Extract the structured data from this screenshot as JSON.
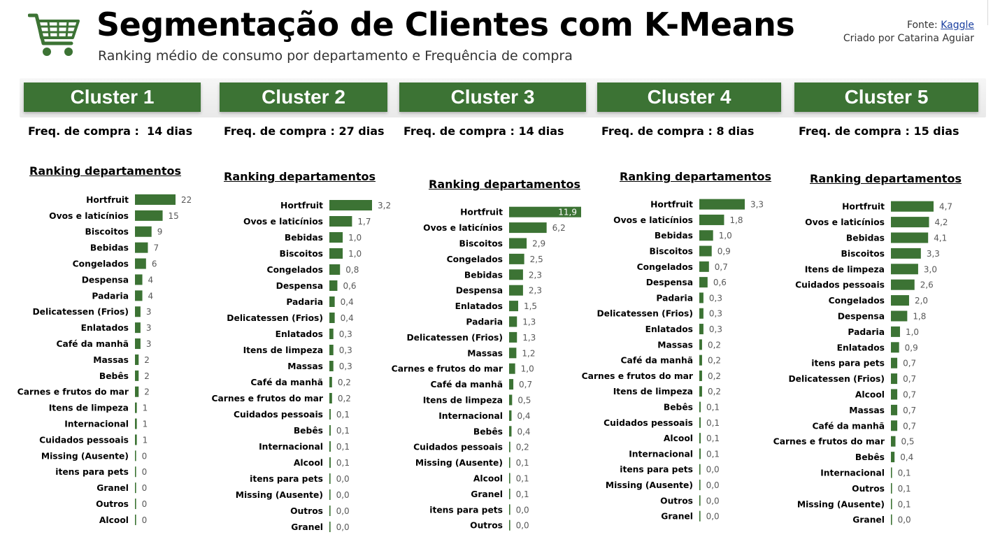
{
  "header": {
    "title": "Segmentação de Clientes com K-Means",
    "subtitle": "Ranking médio de consumo por departamento e Frequência de compra",
    "source_label": "Fonte:",
    "source_link": "Kaggle",
    "credit": "Criado por Catarina Aguiar",
    "icon": "shopping-cart-icon"
  },
  "colors": {
    "bar": "#3c7334",
    "header_bg": "#3c7334",
    "value_text": "#595959"
  },
  "clusters": [
    {
      "name": "Cluster 1",
      "freq": "Freq. de compra :  14 dias",
      "ranking_title": "Ranking departamentos"
    },
    {
      "name": "Cluster 2",
      "freq": "Freq. de compra : 27 dias",
      "ranking_title": "Ranking departamentos"
    },
    {
      "name": "Cluster 3",
      "freq": "Freq. de compra : 14 dias",
      "ranking_title": "Ranking departamentos"
    },
    {
      "name": "Cluster 4",
      "freq": "Freq. de compra : 8 dias",
      "ranking_title": "Ranking departamentos"
    },
    {
      "name": "Cluster 5",
      "freq": "Freq. de compra : 15 dias",
      "ranking_title": "Ranking departamentos"
    }
  ],
  "chart_data": [
    {
      "type": "bar",
      "orientation": "horizontal",
      "title": "Ranking departamentos",
      "categories": [
        "Hortfruit",
        "Ovos e laticínios",
        "Biscoitos",
        "Bebidas",
        "Congelados",
        "Despensa",
        "Padaria",
        "Delicatessen (Frios)",
        "Enlatados",
        "Café da manhã",
        "Massas",
        "Bebês",
        "Carnes e frutos do mar",
        "Itens de limpeza",
        "Internacional",
        "Cuidados pessoais",
        "Missing (Ausente)",
        "itens para pets",
        "Granel",
        "Outros",
        "Alcool"
      ],
      "values": [
        22,
        15,
        9,
        7,
        6,
        4,
        4,
        3,
        3,
        3,
        2,
        2,
        2,
        1,
        1,
        1,
        0,
        0,
        0,
        0,
        0
      ],
      "labels": [
        "22",
        "15",
        "9",
        "7",
        "6",
        "4",
        "4",
        "3",
        "3",
        "3",
        "2",
        "2",
        "2",
        "1",
        "1",
        "1",
        "0",
        "0",
        "0",
        "0",
        "0"
      ],
      "label_inside_first": false
    },
    {
      "type": "bar",
      "orientation": "horizontal",
      "title": "Ranking departamentos",
      "categories": [
        "Hortfruit",
        "Ovos e laticínios",
        "Bebidas",
        "Biscoitos",
        "Congelados",
        "Despensa",
        "Padaria",
        "Delicatessen (Frios)",
        "Enlatados",
        "Itens de limpeza",
        "Massas",
        "Café da manhã",
        "Carnes e frutos do mar",
        "Cuidados pessoais",
        "Bebês",
        "Internacional",
        "Alcool",
        "itens para pets",
        "Missing (Ausente)",
        "Outros",
        "Granel"
      ],
      "values": [
        3.2,
        1.7,
        1.0,
        1.0,
        0.8,
        0.6,
        0.4,
        0.4,
        0.3,
        0.3,
        0.3,
        0.2,
        0.2,
        0.1,
        0.1,
        0.1,
        0.1,
        0.0,
        0.0,
        0.0,
        0.0
      ],
      "labels": [
        "3,2",
        "1,7",
        "1,0",
        "1,0",
        "0,8",
        "0,6",
        "0,4",
        "0,4",
        "0,3",
        "0,3",
        "0,3",
        "0,2",
        "0,2",
        "0,1",
        "0,1",
        "0,1",
        "0,1",
        "0,0",
        "0,0",
        "0,0",
        "0,0"
      ],
      "label_inside_first": false
    },
    {
      "type": "bar",
      "orientation": "horizontal",
      "title": "Ranking departamentos",
      "categories": [
        "Hortfruit",
        "Ovos e laticínios",
        "Biscoitos",
        "Congelados",
        "Bebidas",
        "Despensa",
        "Enlatados",
        "Padaria",
        "Delicatessen (Frios)",
        "Massas",
        "Carnes e frutos do mar",
        "Café da manhã",
        "Itens de limpeza",
        "Internacional",
        "Bebês",
        "Cuidados pessoais",
        "Missing (Ausente)",
        "Alcool",
        "Granel",
        "itens para pets",
        "Outros"
      ],
      "values": [
        11.9,
        6.2,
        2.9,
        2.5,
        2.3,
        2.3,
        1.5,
        1.3,
        1.3,
        1.2,
        1.0,
        0.7,
        0.5,
        0.4,
        0.4,
        0.2,
        0.1,
        0.1,
        0.1,
        0.0,
        0.0
      ],
      "labels": [
        "11,9",
        "6,2",
        "2,9",
        "2,5",
        "2,3",
        "2,3",
        "1,5",
        "1,3",
        "1,3",
        "1,2",
        "1,0",
        "0,7",
        "0,5",
        "0,4",
        "0,4",
        "0,2",
        "0,1",
        "0,1",
        "0,1",
        "0,0",
        "0,0"
      ],
      "label_inside_first": true
    },
    {
      "type": "bar",
      "orientation": "horizontal",
      "title": "Ranking departamentos",
      "categories": [
        "Hortfruit",
        "Ovos e laticínios",
        "Bebidas",
        "Biscoitos",
        "Congelados",
        "Despensa",
        "Padaria",
        "Delicatessen (Frios)",
        "Enlatados",
        "Massas",
        "Café da manhã",
        "Carnes e frutos do mar",
        "Itens de limpeza",
        "Bebês",
        "Cuidados pessoais",
        "Alcool",
        "Internacional",
        "itens para pets",
        "Missing (Ausente)",
        "Outros",
        "Granel"
      ],
      "values": [
        3.3,
        1.8,
        1.0,
        0.9,
        0.7,
        0.6,
        0.3,
        0.3,
        0.3,
        0.2,
        0.2,
        0.2,
        0.2,
        0.1,
        0.1,
        0.1,
        0.1,
        0.0,
        0.0,
        0.0,
        0.0
      ],
      "labels": [
        "3,3",
        "1,8",
        "1,0",
        "0,9",
        "0,7",
        "0,6",
        "0,3",
        "0,3",
        "0,3",
        "0,2",
        "0,2",
        "0,2",
        "0,2",
        "0,1",
        "0,1",
        "0,1",
        "0,1",
        "0,0",
        "0,0",
        "0,0",
        "0,0"
      ],
      "label_inside_first": false
    },
    {
      "type": "bar",
      "orientation": "horizontal",
      "title": "Ranking departamentos",
      "categories": [
        "Hortfruit",
        "Ovos e laticínios",
        "Bebidas",
        "Biscoitos",
        "Itens de limpeza",
        "Cuidados pessoais",
        "Congelados",
        "Despensa",
        "Padaria",
        "Enlatados",
        "itens para pets",
        "Delicatessen (Frios)",
        "Alcool",
        "Massas",
        "Café da manhã",
        "Carnes e frutos do mar",
        "Bebês",
        "Internacional",
        "Outros",
        "Missing (Ausente)",
        "Granel"
      ],
      "values": [
        4.7,
        4.2,
        4.1,
        3.3,
        3.0,
        2.6,
        2.0,
        1.8,
        1.0,
        0.9,
        0.7,
        0.7,
        0.7,
        0.7,
        0.7,
        0.5,
        0.4,
        0.1,
        0.1,
        0.1,
        0.0
      ],
      "labels": [
        "4,7",
        "4,2",
        "4,1",
        "3,3",
        "3,0",
        "2,6",
        "2,0",
        "1,8",
        "1,0",
        "0,9",
        "0,7",
        "0,7",
        "0,7",
        "0,7",
        "0,7",
        "0,5",
        "0,4",
        "0,1",
        "0,1",
        "0,1",
        "0,0"
      ],
      "label_inside_first": false
    }
  ]
}
